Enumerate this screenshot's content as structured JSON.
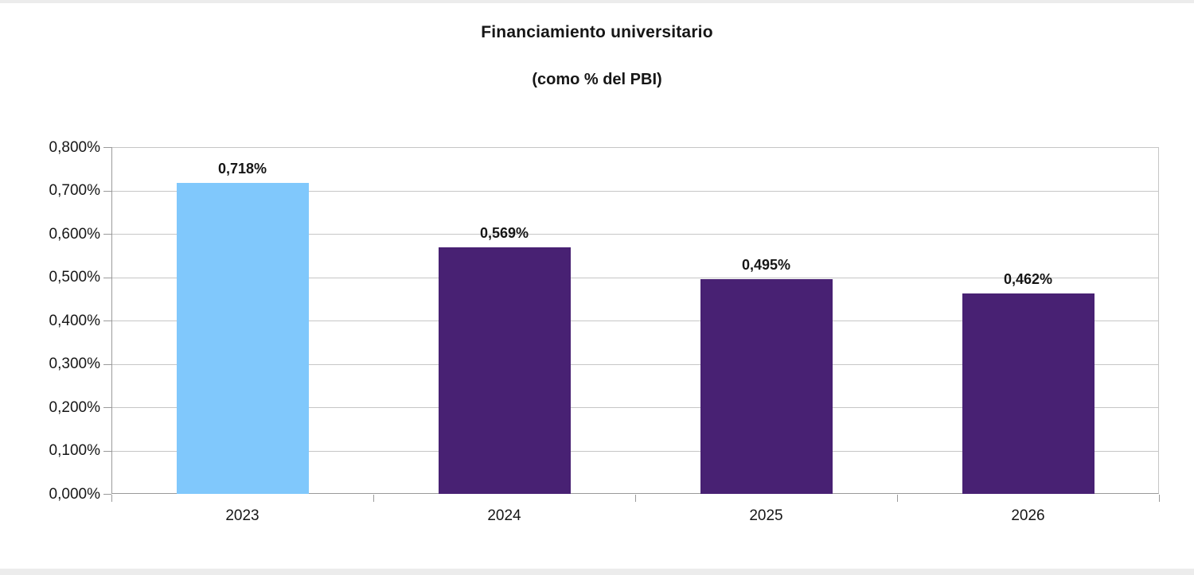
{
  "page": {
    "background": "#ffffff",
    "edge_strip_color": "#ececec"
  },
  "chart_data": {
    "type": "bar",
    "title": "Financiamiento universitario",
    "subtitle": "(como % del PBI)",
    "categories": [
      "2023",
      "2024",
      "2025",
      "2026"
    ],
    "values": [
      0.718,
      0.569,
      0.495,
      0.462
    ],
    "value_labels": [
      "0,718%",
      "0,569%",
      "0,495%",
      "0,462%"
    ],
    "bar_colors": [
      "#80C8FC",
      "#482173",
      "#482173",
      "#482173"
    ],
    "xlabel": "",
    "ylabel": "",
    "y_axis": {
      "min": 0,
      "max": 0.8,
      "step": 0.1,
      "tick_labels": [
        "0,000%",
        "0,100%",
        "0,200%",
        "0,300%",
        "0,400%",
        "0,500%",
        "0,600%",
        "0,700%",
        "0,800%"
      ]
    },
    "grid": true,
    "legend": false,
    "colors": {
      "gridline": "#c6c6c6",
      "axis": "#9a9a9a",
      "text": "#161616",
      "bar_highlight": "#80C8FC",
      "bar_default": "#482173"
    }
  }
}
